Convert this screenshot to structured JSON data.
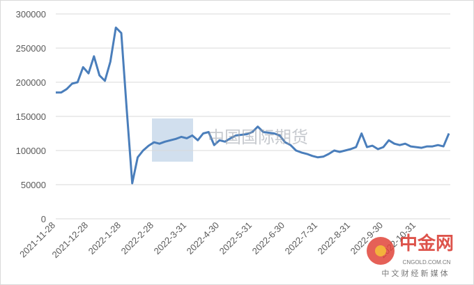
{
  "chart_data": {
    "type": "line",
    "categories": [
      "2021-11-28",
      null,
      null,
      null,
      null,
      null,
      "2021-12-28",
      null,
      null,
      null,
      null,
      null,
      "2022-1-28",
      null,
      null,
      null,
      null,
      null,
      "2022-2-28",
      null,
      null,
      null,
      null,
      null,
      "2022-3-31",
      null,
      null,
      null,
      null,
      null,
      "2022-4-30",
      null,
      null,
      null,
      null,
      null,
      "2022-5-31",
      null,
      null,
      null,
      null,
      null,
      "2022-6-30",
      null,
      null,
      null,
      null,
      null,
      "2022-7-31",
      null,
      null,
      null,
      null,
      null,
      "2022-8-31",
      null,
      null,
      null,
      null,
      null,
      "2022-9-30",
      null,
      null,
      null,
      null,
      null,
      "2022-10-31",
      null,
      null,
      null,
      null,
      null,
      null
    ],
    "series": [
      {
        "color": "#4a7ebb",
        "values": [
          185000,
          185000,
          190000,
          198000,
          200000,
          222000,
          213000,
          238000,
          210000,
          202000,
          230000,
          280000,
          272000,
          160000,
          52000,
          90000,
          100000,
          107000,
          112000,
          110000,
          113000,
          115000,
          117000,
          120000,
          118000,
          122000,
          115000,
          125000,
          127000,
          108000,
          115000,
          113000,
          118000,
          122000,
          123000,
          124000,
          127000,
          135000,
          127000,
          126000,
          125000,
          122000,
          112000,
          108000,
          100000,
          97000,
          95000,
          92000,
          90000,
          91000,
          95000,
          100000,
          98000,
          100000,
          102000,
          105000,
          125000,
          105000,
          107000,
          102000,
          105000,
          115000,
          110000,
          108000,
          110000,
          106000,
          105000,
          104000,
          106000,
          106000,
          108000,
          106000,
          125000
        ]
      }
    ],
    "ylim": [
      0,
      300000
    ],
    "yticks": [
      0,
      50000,
      100000,
      150000,
      200000,
      250000,
      300000
    ],
    "grid": true,
    "watermarks": [
      "中国国际期货",
      "中金网",
      "CNGOLD.COM.CN",
      "中 文 财 经 新 媒 体"
    ]
  }
}
